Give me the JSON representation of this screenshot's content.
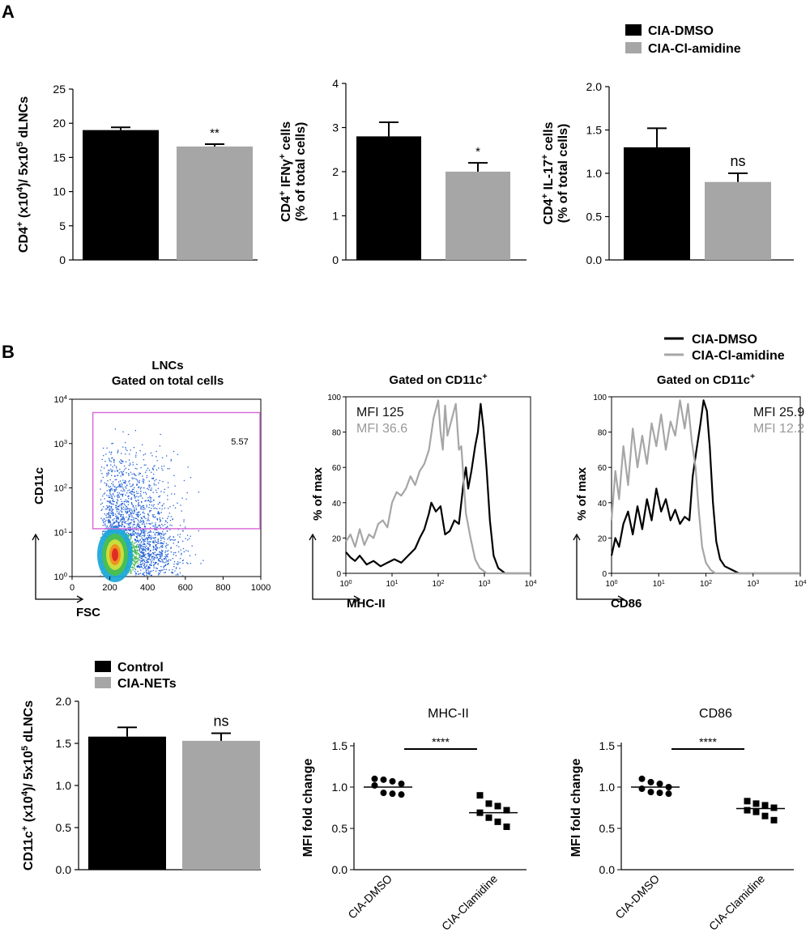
{
  "panels": {
    "a_letter": "A",
    "b_letter": "B"
  },
  "colors": {
    "dmso": "#000000",
    "clamidine": "#a6a6a6",
    "dotplot_gate": "#d966d9",
    "dot_blue": "#1f5fd6"
  },
  "legend_a": {
    "items": [
      "CIA-DMSO",
      "CIA-Cl-amidine"
    ]
  },
  "legend_b_hist": {
    "items": [
      "CIA-DMSO",
      "CIA-Cl-amidine"
    ]
  },
  "legend_b_bar": {
    "items": [
      "Control",
      "CIA-NETs"
    ]
  },
  "chart_data": [
    {
      "id": "cd4-count",
      "type": "bar",
      "categories": [
        "CIA-DMSO",
        "CIA-Cl-amidine"
      ],
      "values": [
        19,
        16.6
      ],
      "errors": [
        0.4,
        0.35
      ],
      "ylabel_parts": [
        "CD4",
        "+",
        " (x10",
        "4",
        ")/ 5x10",
        "5",
        " dLNCs"
      ],
      "ylim": [
        0,
        25
      ],
      "yticks": [
        "0",
        "5",
        "10",
        "15",
        "20",
        "25"
      ],
      "significance": "**"
    },
    {
      "id": "cd4-ifng",
      "type": "bar",
      "categories": [
        "CIA-DMSO",
        "CIA-Cl-amidine"
      ],
      "values": [
        2.8,
        2.0
      ],
      "errors": [
        0.32,
        0.2
      ],
      "ylabel_line1_parts": [
        "CD4",
        "+",
        " IFNγ",
        "+",
        " cells"
      ],
      "ylabel_line2": "(% of total cells)",
      "ylim": [
        0,
        4
      ],
      "yticks": [
        "0",
        "1",
        "2",
        "3",
        "4"
      ],
      "significance": "*"
    },
    {
      "id": "cd4-il17",
      "type": "bar",
      "categories": [
        "CIA-DMSO",
        "CIA-Cl-amidine"
      ],
      "values": [
        1.3,
        0.9
      ],
      "errors": [
        0.22,
        0.1
      ],
      "ylabel_line1_parts": [
        "CD4",
        "+",
        " IL-17",
        "+",
        " cells"
      ],
      "ylabel_line2": "(% of total cells)",
      "ylim": [
        0,
        2
      ],
      "yticks": [
        "0.0",
        "0.5",
        "1.0",
        "1.5",
        "2.0"
      ],
      "significance": "ns"
    },
    {
      "id": "lnc-dotplot",
      "type": "scatter",
      "title_line1": "LNCs",
      "title_line2": "Gated on total cells",
      "xlabel": "FSC",
      "ylabel": "CD11c",
      "xlim": [
        0,
        1000
      ],
      "xticks": [
        "0",
        "200",
        "400",
        "600",
        "800",
        "1000"
      ],
      "yscale": "log",
      "yticks_base": [
        "10",
        "10",
        "10",
        "10",
        "10"
      ],
      "yticks_exp": [
        "0",
        "1",
        "2",
        "3",
        "4"
      ],
      "gate_percent": "5.57",
      "gate": {
        "x_min": 110,
        "x_max": 1000,
        "y_min": 12,
        "y_max": 5000
      }
    },
    {
      "id": "mhc-hist",
      "type": "line",
      "title_parts": [
        "Gated on CD11c",
        "+"
      ],
      "xlabel": "MHC-II",
      "ylabel": "% of max",
      "xscale": "log",
      "xticks_exp": [
        "0",
        "1",
        "2",
        "3",
        "4"
      ],
      "xtick_base": "10",
      "yticks": [
        "0",
        "20",
        "40",
        "60",
        "80",
        "100"
      ],
      "ylim": [
        0,
        100
      ],
      "mfi_dmso": "MFI 125",
      "mfi_clamidine": "MFI 36.6",
      "series": [
        {
          "name": "CIA-DMSO",
          "color": "#000000",
          "x": [
            0,
            0.1,
            0.2,
            0.3,
            0.45,
            0.6,
            0.75,
            0.9,
            1.05,
            1.2,
            1.35,
            1.5,
            1.6,
            1.7,
            1.8,
            1.85,
            1.95,
            2.05,
            2.15,
            2.25,
            2.35,
            2.45,
            2.55,
            2.6,
            2.65,
            2.72,
            2.8,
            2.86,
            2.92,
            2.98,
            3.05,
            3.12,
            3.2,
            3.3,
            3.45,
            4.0
          ],
          "y": [
            12,
            9,
            7,
            10,
            5,
            7,
            4,
            6,
            8,
            6,
            10,
            14,
            20,
            25,
            34,
            40,
            35,
            38,
            22,
            24,
            30,
            28,
            52,
            60,
            48,
            58,
            72,
            80,
            96,
            82,
            58,
            30,
            10,
            3,
            0,
            0
          ]
        },
        {
          "name": "CIA-Cl-amidine",
          "color": "#a6a6a6",
          "x": [
            0,
            0.1,
            0.2,
            0.3,
            0.4,
            0.5,
            0.6,
            0.7,
            0.8,
            0.9,
            1.0,
            1.1,
            1.2,
            1.3,
            1.4,
            1.5,
            1.6,
            1.7,
            1.8,
            1.9,
            2.0,
            2.05,
            2.1,
            2.15,
            2.2,
            2.3,
            2.38,
            2.45,
            2.5,
            2.6,
            2.7,
            2.8,
            2.9,
            3.05,
            3.3,
            4.0
          ],
          "y": [
            18,
            22,
            15,
            25,
            16,
            22,
            20,
            28,
            30,
            26,
            40,
            46,
            44,
            48,
            55,
            50,
            58,
            62,
            70,
            88,
            98,
            80,
            70,
            95,
            78,
            88,
            96,
            70,
            72,
            34,
            20,
            8,
            3,
            0,
            0,
            0
          ]
        }
      ]
    },
    {
      "id": "cd86-hist",
      "type": "line",
      "title_parts": [
        "Gated on CD11c",
        "+"
      ],
      "xlabel": "CD86",
      "ylabel": "% of max",
      "xscale": "log",
      "xticks_exp": [
        "0",
        "1",
        "2",
        "3",
        "4"
      ],
      "xtick_base": "10",
      "yticks": [
        "0",
        "20",
        "40",
        "60",
        "80",
        "100"
      ],
      "ylim": [
        0,
        100
      ],
      "mfi_dmso": "MFI 25.9",
      "mfi_clamidine": "MFI 12.2",
      "series": [
        {
          "name": "CIA-DMSO",
          "color": "#000000",
          "x": [
            0,
            0.08,
            0.16,
            0.25,
            0.35,
            0.45,
            0.55,
            0.65,
            0.75,
            0.85,
            0.95,
            1.05,
            1.15,
            1.25,
            1.35,
            1.45,
            1.55,
            1.65,
            1.72,
            1.8,
            1.88,
            1.95,
            2.02,
            2.08,
            2.15,
            2.22,
            2.3,
            2.4,
            2.55,
            2.7,
            3.0,
            4.0
          ],
          "y": [
            10,
            20,
            15,
            28,
            35,
            22,
            38,
            25,
            42,
            30,
            48,
            35,
            42,
            30,
            36,
            28,
            32,
            30,
            55,
            70,
            84,
            98,
            92,
            72,
            40,
            18,
            8,
            4,
            2,
            0,
            0,
            0
          ]
        },
        {
          "name": "CIA-Cl-amidine",
          "color": "#a6a6a6",
          "x": [
            0,
            0.08,
            0.16,
            0.25,
            0.35,
            0.45,
            0.55,
            0.65,
            0.75,
            0.85,
            0.95,
            1.05,
            1.15,
            1.25,
            1.35,
            1.45,
            1.55,
            1.62,
            1.7,
            1.78,
            1.85,
            1.92,
            2.0,
            2.1,
            2.2,
            2.4,
            3.0,
            4.0
          ],
          "y": [
            30,
            58,
            42,
            72,
            50,
            82,
            60,
            78,
            62,
            85,
            72,
            90,
            70,
            86,
            78,
            98,
            82,
            96,
            75,
            60,
            35,
            15,
            6,
            2,
            0,
            0,
            0,
            0
          ]
        }
      ]
    },
    {
      "id": "cd11c-count",
      "type": "bar",
      "categories": [
        "Control",
        "CIA-NETs"
      ],
      "values": [
        1.58,
        1.53
      ],
      "errors": [
        0.11,
        0.09
      ],
      "ylabel_parts": [
        "CD11c",
        "+",
        " (x10",
        "4",
        ")/ 5x10",
        "5",
        " dLNCs"
      ],
      "ylim": [
        0,
        2
      ],
      "yticks": [
        "0.0",
        "0.5",
        "1.0",
        "1.5",
        "2.0"
      ],
      "significance": "ns"
    },
    {
      "id": "mhc-fold",
      "type": "scatter",
      "title": "MHC-II",
      "ylabel": "MFI fold change",
      "categories": [
        "CIA-DMSO",
        "CIA-Clamidine"
      ],
      "ylim": [
        0,
        1.5
      ],
      "yticks": [
        "0.0",
        "0.5",
        "1.0",
        "1.5"
      ],
      "means": [
        1.0,
        0.69
      ],
      "significance": "****",
      "series": [
        {
          "name": "CIA-DMSO",
          "marker": "circle",
          "values": [
            1.1,
            1.09,
            1.07,
            1.04,
            1.02,
            0.93,
            0.92,
            0.91
          ]
        },
        {
          "name": "CIA-Clamidine",
          "marker": "square",
          "values": [
            0.9,
            0.8,
            0.77,
            0.72,
            0.69,
            0.63,
            0.58,
            0.52
          ]
        }
      ]
    },
    {
      "id": "cd86-fold",
      "type": "scatter",
      "title": "CD86",
      "ylabel": "MFI fold change",
      "categories": [
        "CIA-DMSO",
        "CIA-Clamidine"
      ],
      "ylim": [
        0,
        1.5
      ],
      "yticks": [
        "0.0",
        "0.5",
        "1.0",
        "1.5"
      ],
      "means": [
        1.0,
        0.74
      ],
      "significance": "****",
      "series": [
        {
          "name": "CIA-DMSO",
          "marker": "circle",
          "values": [
            1.1,
            1.06,
            1.04,
            1.0,
            0.98,
            0.94,
            0.93,
            0.92
          ]
        },
        {
          "name": "CIA-Clamidine",
          "marker": "square",
          "values": [
            0.83,
            0.8,
            0.78,
            0.75,
            0.72,
            0.7,
            0.65,
            0.6
          ]
        }
      ]
    }
  ]
}
